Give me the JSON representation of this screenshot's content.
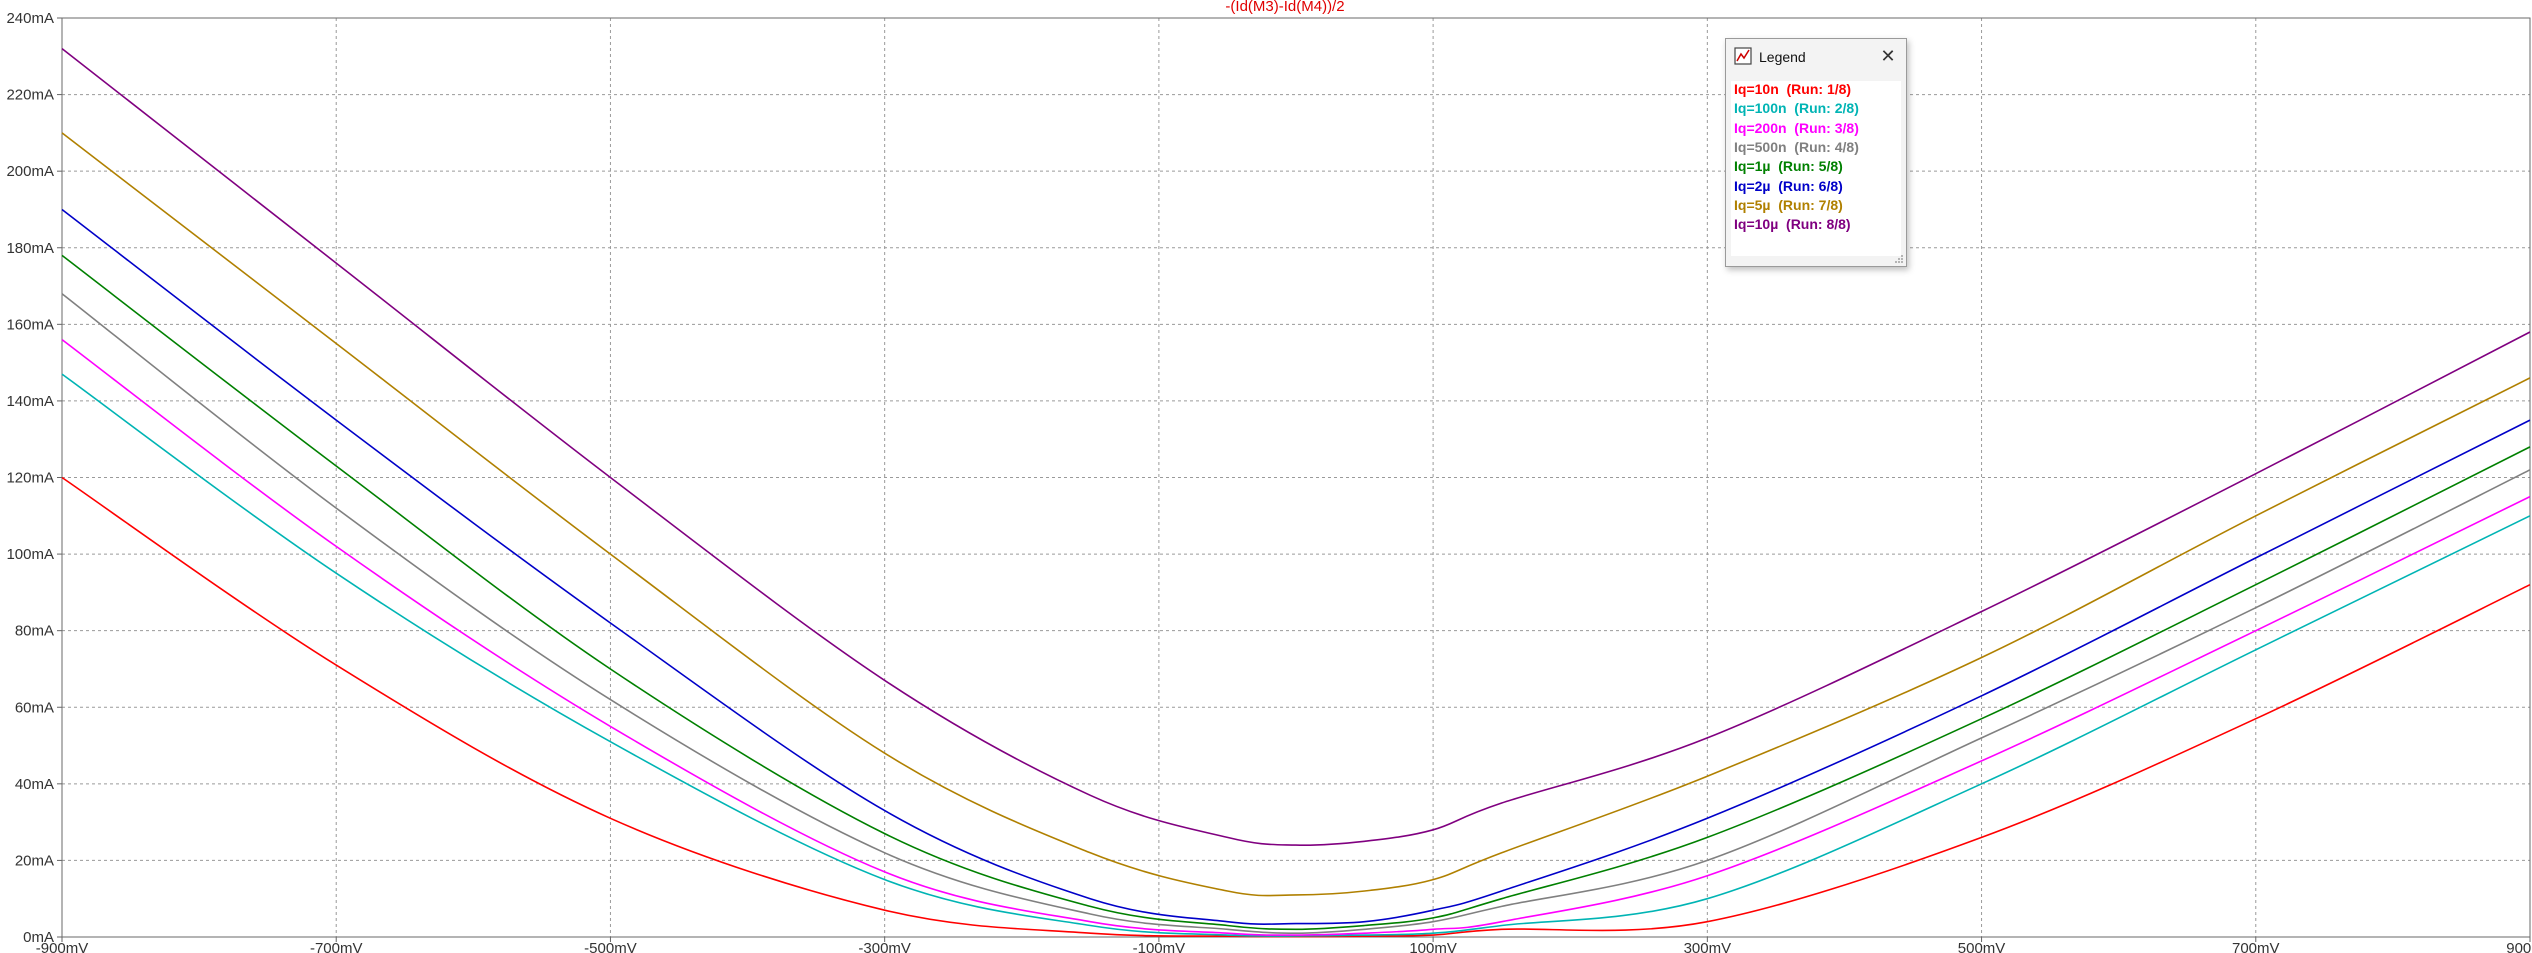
{
  "chart_data": {
    "type": "line",
    "title": "-(Id(M3)-Id(M4))/2",
    "xlabel": "",
    "ylabel": "",
    "xlim": [
      -900,
      900
    ],
    "ylim": [
      0,
      240
    ],
    "x_unit": "mV",
    "y_unit": "mA",
    "grid": true,
    "x_ticks": [
      "-900mV",
      "-700mV",
      "-500mV",
      "-300mV",
      "-100mV",
      "100mV",
      "300mV",
      "500mV",
      "700mV",
      "900mV"
    ],
    "y_ticks": [
      "0mA",
      "20mA",
      "40mA",
      "60mA",
      "80mA",
      "100mA",
      "120mA",
      "140mA",
      "160mA",
      "180mA",
      "200mA",
      "220mA",
      "240mA"
    ],
    "x": [
      -900,
      -700,
      -500,
      -300,
      -150,
      -50,
      0,
      50,
      100,
      150,
      300,
      500,
      700,
      900
    ],
    "series": [
      {
        "name": "Iq=10n",
        "run": "(Run: 1/8)",
        "color": "#ff0000",
        "values": [
          120,
          71,
          31,
          7,
          1,
          0.2,
          0.1,
          0.2,
          0.5,
          2,
          4,
          26,
          57,
          92
        ]
      },
      {
        "name": "Iq=100n",
        "run": "(Run: 2/8)",
        "color": "#00b4b4",
        "values": [
          147,
          95,
          51,
          15,
          3,
          0.5,
          0.3,
          0.5,
          1,
          3,
          10,
          40,
          75,
          110
        ]
      },
      {
        "name": "Iq=200n",
        "run": "(Run: 3/8)",
        "color": "#ff00ff",
        "values": [
          156,
          102,
          55,
          17,
          4,
          1,
          0.5,
          1,
          2,
          4,
          16,
          46,
          80,
          115
        ]
      },
      {
        "name": "Iq=500n",
        "run": "(Run: 4/8)",
        "color": "#808080",
        "values": [
          168,
          112,
          62,
          22,
          6,
          2,
          1,
          2,
          4,
          8,
          20,
          52,
          86,
          122
        ]
      },
      {
        "name": "Iq=1µ",
        "run": "(Run: 5/8)",
        "color": "#008000",
        "values": [
          178,
          123,
          70,
          27,
          8,
          3,
          2,
          3,
          5,
          10,
          26,
          57,
          92,
          128
        ]
      },
      {
        "name": "Iq=2µ",
        "run": "(Run: 6/8)",
        "color": "#0000c8",
        "values": [
          190,
          135,
          82,
          33,
          10,
          4,
          3.5,
          4,
          7,
          12,
          31,
          63,
          99,
          135
        ]
      },
      {
        "name": "Iq=5µ",
        "run": "(Run: 7/8)",
        "color": "#b08000",
        "values": [
          210,
          155,
          100,
          48,
          22,
          12,
          11,
          12,
          15,
          22,
          42,
          73,
          110,
          146
        ]
      },
      {
        "name": "Iq=10µ",
        "run": "(Run: 8/8)",
        "color": "#800080",
        "values": [
          232,
          176,
          120,
          67,
          37,
          26,
          24,
          25,
          28,
          35,
          52,
          85,
          121,
          158
        ]
      }
    ]
  },
  "legend": {
    "window_title": "Legend",
    "icon": "legend-icon",
    "close_icon": "close-icon"
  }
}
